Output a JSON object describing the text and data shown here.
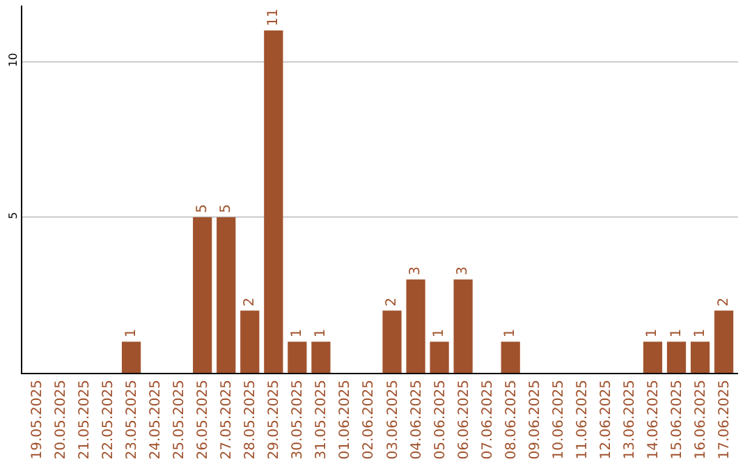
{
  "chart_data": {
    "type": "bar",
    "categories": [
      "19.05.2025",
      "20.05.2025",
      "21.05.2025",
      "22.05.2025",
      "23.05.2025",
      "24.05.2025",
      "25.05.2025",
      "26.05.2025",
      "27.05.2025",
      "28.05.2025",
      "29.05.2025",
      "30.05.2025",
      "31.05.2025",
      "01.06.2025",
      "02.06.2025",
      "03.06.2025",
      "04.06.2025",
      "05.06.2025",
      "06.06.2025",
      "07.06.2025",
      "08.06.2025",
      "09.06.2025",
      "10.06.2025",
      "11.06.2025",
      "12.06.2025",
      "13.06.2025",
      "14.06.2025",
      "15.06.2025",
      "16.06.2025",
      "17.06.2025"
    ],
    "values": [
      0,
      0,
      0,
      0,
      1,
      0,
      0,
      5,
      5,
      2,
      11,
      1,
      1,
      0,
      0,
      2,
      3,
      1,
      3,
      0,
      1,
      0,
      0,
      0,
      0,
      0,
      1,
      1,
      1,
      2
    ],
    "value_labels": [
      null,
      null,
      null,
      null,
      "1",
      null,
      null,
      "5",
      "5",
      "2",
      "11",
      "1",
      "1",
      null,
      null,
      "2",
      "3",
      "1",
      "3",
      null,
      "1",
      null,
      null,
      null,
      null,
      null,
      "1",
      "1",
      "1",
      "2"
    ],
    "color": "#a0522d",
    "ylim": [
      0,
      11.8
    ],
    "yticks": [
      5,
      10
    ],
    "grid": "y",
    "legend": false
  }
}
